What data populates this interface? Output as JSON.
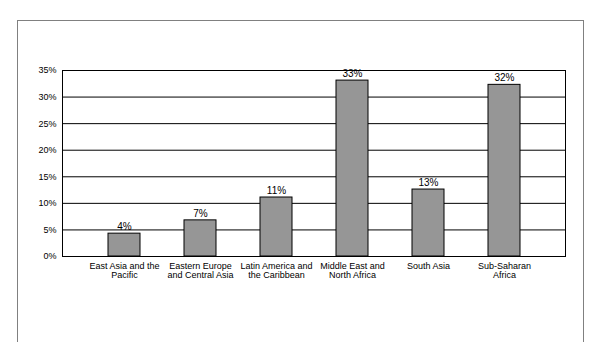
{
  "chart_data": {
    "type": "bar",
    "categories": [
      "East Asia and the Pacific",
      "Eastern Europe and Central Asia",
      "Latin America and the Caribbean",
      "Middle East and North Africa",
      "South Asia",
      "Sub-Saharan Africa"
    ],
    "values": [
      4.3,
      6.8,
      11.1,
      33.1,
      12.6,
      32.3
    ],
    "value_labels": [
      "4%",
      "7%",
      "11%",
      "33%",
      "13%",
      "32%"
    ],
    "data_labels": true,
    "color": "#969696",
    "ylim": [
      0,
      35
    ],
    "yticks": [
      {
        "value": 0,
        "label": "0%"
      },
      {
        "value": 5,
        "label": "5%"
      },
      {
        "value": 10,
        "label": "10%"
      },
      {
        "value": 15,
        "label": "15%"
      },
      {
        "value": 20,
        "label": "20%"
      },
      {
        "value": 25,
        "label": "25%"
      },
      {
        "value": 30,
        "label": "30%"
      },
      {
        "value": 35,
        "label": "35%"
      }
    ],
    "grid": true
  }
}
